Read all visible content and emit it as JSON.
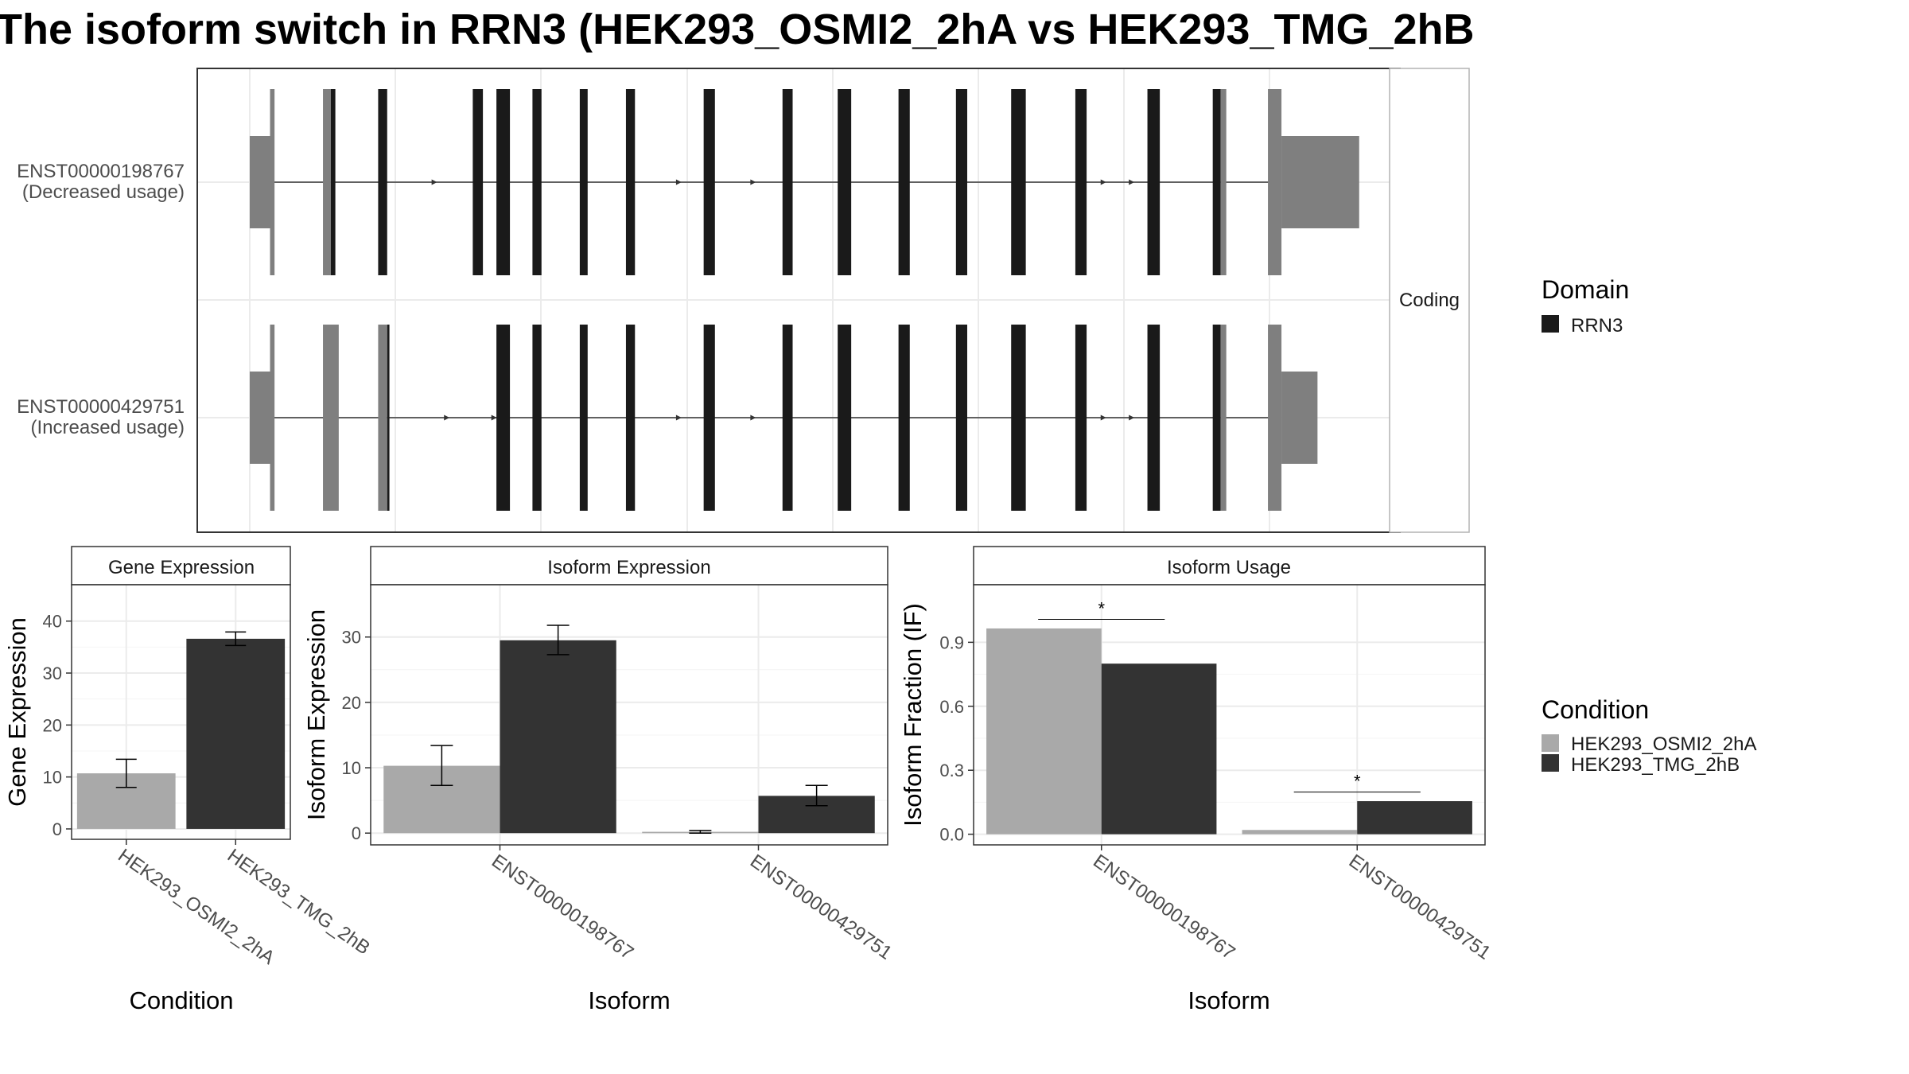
{
  "title": "The isoform switch in RRN3 (HEK293_OSMI2_2hA vs HEK293_TMG_2hB",
  "colors": {
    "osmi": "#a9a9a9",
    "tmg": "#333333",
    "domain": "#1a1a1a",
    "utr": "#7f7f7f",
    "intron": "#333333",
    "grid": "#ebebeb",
    "border": "#333333"
  },
  "structure": {
    "facet_label": "Coding",
    "transcripts": [
      {
        "id": "ENST00000198767",
        "usage": "(Decreased usage)",
        "exons": [
          {
            "s": 0.0,
            "e": 0.018,
            "kind": "utr",
            "h": "half"
          },
          {
            "s": 0.018,
            "e": 0.022,
            "kind": "utr",
            "h": "full"
          },
          {
            "s": 0.065,
            "e": 0.076,
            "kind": "mix",
            "split": 0.072
          },
          {
            "s": 0.114,
            "e": 0.122,
            "kind": "cds"
          },
          {
            "s": 0.198,
            "e": 0.207,
            "kind": "cds"
          },
          {
            "s": 0.219,
            "e": 0.231,
            "kind": "cds"
          },
          {
            "s": 0.251,
            "e": 0.259,
            "kind": "cds"
          },
          {
            "s": 0.293,
            "e": 0.3,
            "kind": "cds"
          },
          {
            "s": 0.334,
            "e": 0.342,
            "kind": "cds"
          },
          {
            "s": 0.403,
            "e": 0.413,
            "kind": "cds"
          },
          {
            "s": 0.473,
            "e": 0.482,
            "kind": "cds"
          },
          {
            "s": 0.522,
            "e": 0.534,
            "kind": "cds"
          },
          {
            "s": 0.576,
            "e": 0.586,
            "kind": "cds"
          },
          {
            "s": 0.627,
            "e": 0.637,
            "kind": "cds"
          },
          {
            "s": 0.676,
            "e": 0.689,
            "kind": "cds"
          },
          {
            "s": 0.733,
            "e": 0.743,
            "kind": "cds"
          },
          {
            "s": 0.797,
            "e": 0.808,
            "kind": "cds"
          },
          {
            "s": 0.855,
            "e": 0.867,
            "kind": "mix",
            "split": 0.862
          },
          {
            "s": 0.904,
            "e": 0.916,
            "kind": "utr",
            "h": "full"
          },
          {
            "s": 0.916,
            "e": 0.985,
            "kind": "utr",
            "h": "half"
          }
        ],
        "arrows": [
          0.165,
          0.202,
          0.382,
          0.411,
          0.448,
          0.479,
          0.759,
          0.784
        ]
      },
      {
        "id": "ENST00000429751",
        "usage": "(Increased usage)",
        "exons": [
          {
            "s": 0.0,
            "e": 0.018,
            "kind": "utr",
            "h": "half"
          },
          {
            "s": 0.018,
            "e": 0.022,
            "kind": "utr",
            "h": "full"
          },
          {
            "s": 0.065,
            "e": 0.079,
            "kind": "utr",
            "h": "full"
          },
          {
            "s": 0.114,
            "e": 0.124,
            "kind": "mix",
            "split": 0.122
          },
          {
            "s": 0.219,
            "e": 0.231,
            "kind": "cds"
          },
          {
            "s": 0.251,
            "e": 0.259,
            "kind": "cds"
          },
          {
            "s": 0.293,
            "e": 0.3,
            "kind": "cds"
          },
          {
            "s": 0.334,
            "e": 0.342,
            "kind": "cds"
          },
          {
            "s": 0.403,
            "e": 0.413,
            "kind": "cds"
          },
          {
            "s": 0.473,
            "e": 0.482,
            "kind": "cds"
          },
          {
            "s": 0.522,
            "e": 0.534,
            "kind": "cds"
          },
          {
            "s": 0.576,
            "e": 0.586,
            "kind": "cds"
          },
          {
            "s": 0.627,
            "e": 0.637,
            "kind": "cds"
          },
          {
            "s": 0.676,
            "e": 0.689,
            "kind": "cds"
          },
          {
            "s": 0.733,
            "e": 0.743,
            "kind": "cds"
          },
          {
            "s": 0.797,
            "e": 0.808,
            "kind": "cds"
          },
          {
            "s": 0.855,
            "e": 0.867,
            "kind": "mix",
            "split": 0.862
          },
          {
            "s": 0.904,
            "e": 0.916,
            "kind": "utr",
            "h": "full"
          },
          {
            "s": 0.916,
            "e": 0.948,
            "kind": "utr",
            "h": "half"
          }
        ],
        "arrows": [
          0.176,
          0.218,
          0.382,
          0.411,
          0.448,
          0.479,
          0.759,
          0.784
        ]
      }
    ]
  },
  "legends": {
    "domain": {
      "title": "Domain",
      "items": [
        "RRN3"
      ]
    },
    "condition": {
      "title": "Condition",
      "items": [
        "HEK293_OSMI2_2hA",
        "HEK293_TMG_2hB"
      ]
    }
  },
  "chart_data": [
    {
      "type": "bar",
      "title": "Gene Expression",
      "xlabel": "Condition",
      "ylabel": "Gene Expression",
      "categories": [
        "HEK293_OSMI2_2hA",
        "HEK293_TMG_2hB"
      ],
      "values": [
        10.7,
        36.6
      ],
      "errors": [
        [
          8.0,
          13.4
        ],
        [
          35.3,
          37.9
        ]
      ],
      "ylim": [
        -2,
        47
      ],
      "yticks": [
        0,
        10,
        20,
        30,
        40
      ]
    },
    {
      "type": "bar",
      "title": "Isoform Expression",
      "xlabel": "Isoform",
      "ylabel": "Isoform Expression",
      "categories": [
        "ENST00000198767",
        "ENST00000429751"
      ],
      "series": [
        {
          "name": "HEK293_OSMI2_2hA",
          "values": [
            10.3,
            0.2
          ],
          "errors": [
            [
              7.3,
              13.4
            ],
            [
              0.0,
              0.4
            ]
          ]
        },
        {
          "name": "HEK293_TMG_2hB",
          "values": [
            29.5,
            5.7
          ],
          "errors": [
            [
              27.3,
              31.8
            ],
            [
              4.2,
              7.3
            ]
          ]
        }
      ],
      "ylim": [
        -1.8,
        38
      ],
      "yticks": [
        0,
        10,
        20,
        30
      ]
    },
    {
      "type": "bar",
      "title": "Isoform Usage",
      "xlabel": "Isoform",
      "ylabel": "Isoform Fraction (IF)",
      "categories": [
        "ENST00000198767",
        "ENST00000429751"
      ],
      "series": [
        {
          "name": "HEK293_OSMI2_2hA",
          "values": [
            0.965,
            0.02
          ]
        },
        {
          "name": "HEK293_TMG_2hB",
          "values": [
            0.8,
            0.155
          ]
        }
      ],
      "significance": [
        "*",
        "*"
      ],
      "ylim": [
        -0.05,
        1.17
      ],
      "yticks": [
        "0.0",
        "0.3",
        "0.6",
        "0.9"
      ]
    }
  ]
}
